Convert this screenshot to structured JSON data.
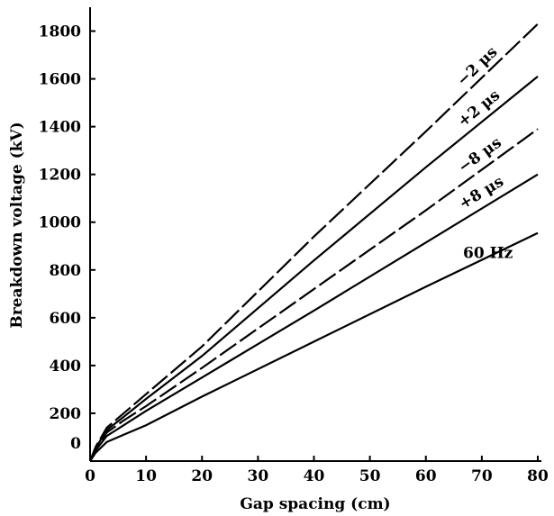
{
  "chart_data": {
    "type": "line",
    "title": "",
    "xlabel": "Gap spacing (cm)",
    "ylabel": "Breakdown voltage (kV)",
    "xlim": [
      0,
      80
    ],
    "ylim": [
      0,
      1900
    ],
    "x_ticks": [
      0,
      10,
      20,
      30,
      40,
      50,
      60,
      70,
      80
    ],
    "y_ticks": [
      0,
      200,
      400,
      600,
      800,
      1000,
      1200,
      1400,
      1600,
      1800
    ],
    "grid": false,
    "series": [
      {
        "name": "−2 μs",
        "dash": "dashed",
        "x": [
          0,
          1,
          3,
          6,
          10,
          20,
          40,
          60,
          80
        ],
        "y": [
          0,
          60,
          140,
          200,
          280,
          480,
          940,
          1380,
          1830
        ]
      },
      {
        "name": "+2 μs",
        "dash": "solid",
        "x": [
          0,
          1,
          3,
          6,
          10,
          20,
          40,
          60,
          80
        ],
        "y": [
          0,
          55,
          130,
          185,
          260,
          440,
          840,
          1230,
          1610
        ]
      },
      {
        "name": "−8 μs",
        "dash": "dashed",
        "x": [
          0,
          1,
          3,
          6,
          10,
          20,
          40,
          60,
          80
        ],
        "y": [
          0,
          50,
          120,
          170,
          230,
          390,
          720,
          1050,
          1390
        ]
      },
      {
        "name": "+8 μs",
        "dash": "solid",
        "x": [
          0,
          1,
          3,
          6,
          10,
          20,
          40,
          60,
          80
        ],
        "y": [
          0,
          45,
          105,
          150,
          210,
          350,
          630,
          915,
          1200
        ]
      },
      {
        "name": "60 Hz",
        "dash": "solid",
        "x": [
          0,
          1,
          3,
          6,
          10,
          20,
          40,
          60,
          80
        ],
        "y": [
          0,
          35,
          80,
          110,
          150,
          270,
          500,
          730,
          955
        ]
      }
    ]
  }
}
